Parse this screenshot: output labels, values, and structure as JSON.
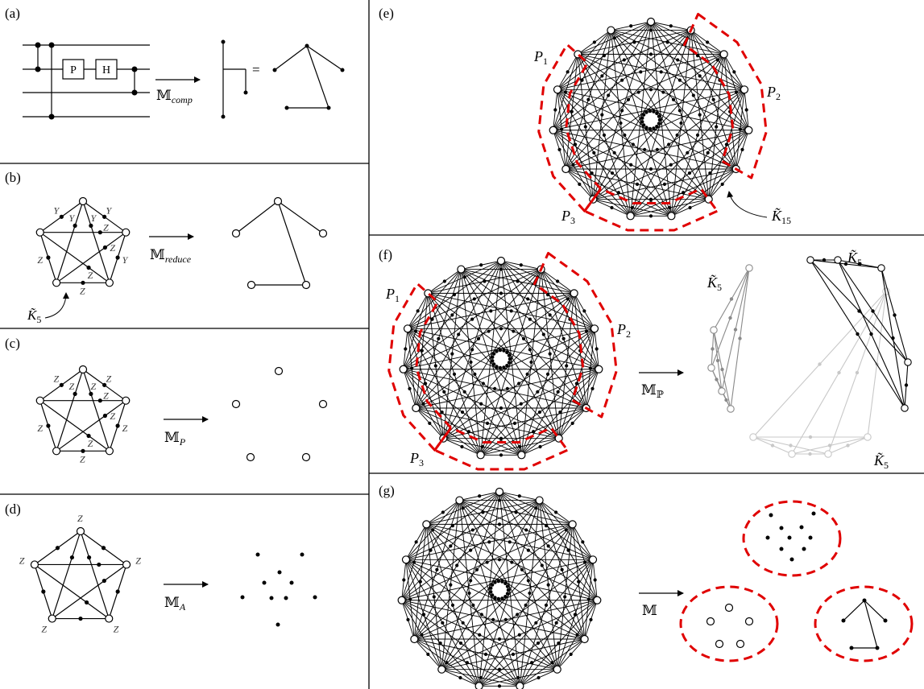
{
  "panels": {
    "a": {
      "label": "(a)",
      "gates": [
        "P",
        "H"
      ],
      "map": "𝕄",
      "map_sub": "comp",
      "equals": "="
    },
    "b": {
      "label": "(b)",
      "map": "𝕄",
      "map_sub": "reduce",
      "edge_labels": [
        "Y",
        "Y",
        "Y",
        "Y",
        "Y",
        "Z",
        "Z",
        "Z",
        "Z",
        "Z"
      ],
      "graph_label": "K̃",
      "graph_label_sub": "5"
    },
    "c": {
      "label": "(c)",
      "map": "𝕄",
      "map_sub": "P",
      "edge_labels": [
        "Z",
        "Z",
        "Z",
        "Z",
        "Z",
        "Z",
        "Z",
        "Z",
        "Z",
        "Z"
      ]
    },
    "d": {
      "label": "(d)",
      "map": "𝕄",
      "map_sub": "A",
      "vertex_labels": [
        "Z",
        "Z",
        "Z",
        "Z",
        "Z"
      ]
    },
    "e": {
      "label": "(e)",
      "parts": [
        {
          "p": "P",
          "sub": "1"
        },
        {
          "p": "P",
          "sub": "2"
        },
        {
          "p": "P",
          "sub": "3"
        }
      ],
      "graph_label": "K̃",
      "graph_label_sub": "15"
    },
    "f": {
      "label": "(f)",
      "parts": [
        {
          "p": "P",
          "sub": "1"
        },
        {
          "p": "P",
          "sub": "2"
        },
        {
          "p": "P",
          "sub": "3"
        }
      ],
      "map": "𝕄",
      "map_sub": "ℙ",
      "graph_label": "K̃",
      "graph_label_sub": "5"
    },
    "g": {
      "label": "(g)",
      "map": "𝕄"
    }
  },
  "colors": {
    "ink": "#000000",
    "partition": "#e00000",
    "gray": "#8a8a8a",
    "lightgray": "#c8c8c8"
  }
}
